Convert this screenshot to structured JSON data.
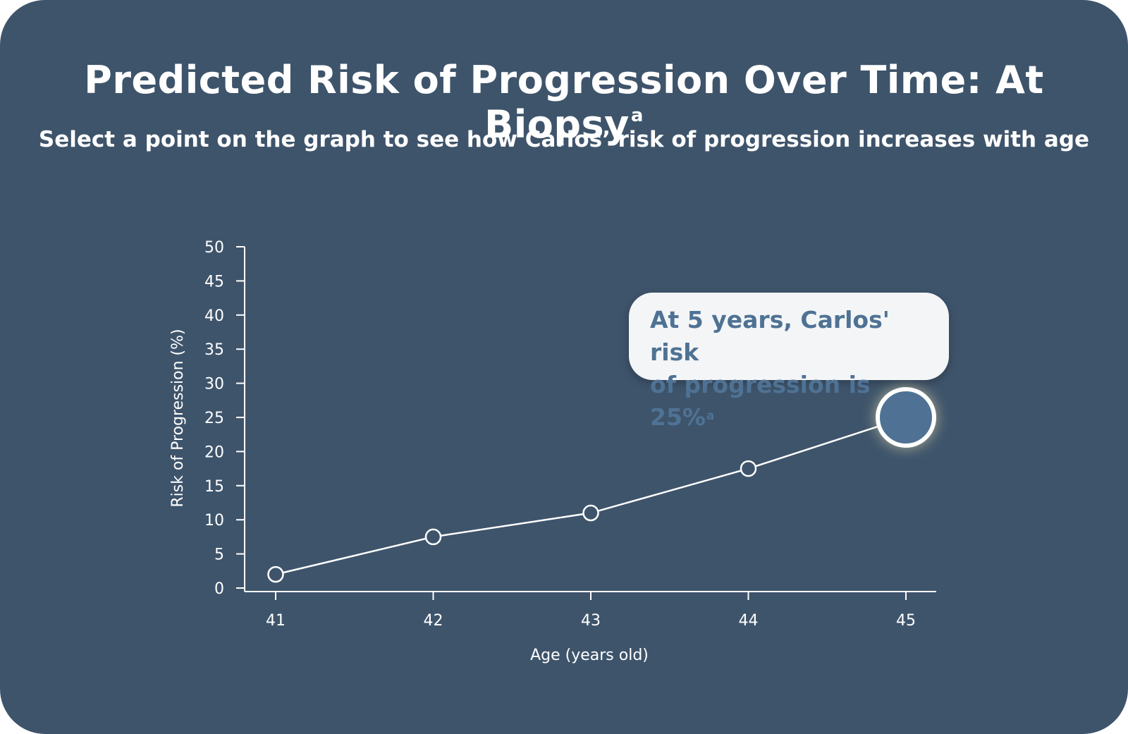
{
  "header": {
    "title": "Predicted Risk of Progression Over Time: At Biopsy",
    "title_superscript": "a",
    "subtitle": "Select a point on the graph to see how Carlos’ risk of progression increases with age"
  },
  "tooltip": {
    "line1": "At 5 years, Carlos' risk",
    "line2": "of progression is 25%",
    "superscript": "a"
  },
  "colors": {
    "background": "#3e546b",
    "line": "#ffffff",
    "selected_point": "#4f7294",
    "tooltip_text": "#4f7294"
  },
  "chart_data": {
    "type": "line",
    "xlabel": "Age (years old)",
    "ylabel": "Risk of Progression (%)",
    "x_ticks": [
      "41",
      "42",
      "43",
      "44",
      "45"
    ],
    "y_ticks": [
      "0",
      "5",
      "10",
      "15",
      "20",
      "25",
      "30",
      "35",
      "40",
      "45",
      "50"
    ],
    "ylim": [
      0,
      50
    ],
    "grid": false,
    "series": [
      {
        "x": [
          41,
          42,
          43,
          44,
          45
        ],
        "values": [
          2,
          7.5,
          11,
          17.5,
          25
        ]
      }
    ],
    "selected_index": 4
  }
}
